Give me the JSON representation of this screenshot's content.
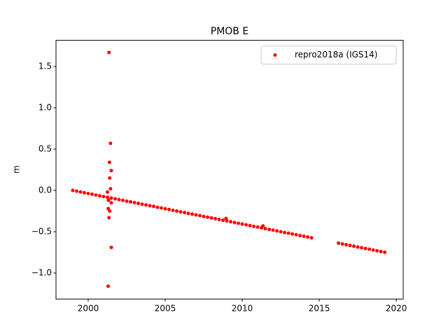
{
  "chart_data": {
    "type": "scatter",
    "title": "PMOB E",
    "y_label": "m",
    "series": [
      {
        "name": "repro2018a (IGS14)",
        "color": "#ff0000",
        "x": [
          1999,
          1999.25,
          1999.5,
          1999.75,
          2000,
          2000.25,
          2000.5,
          2000.75,
          2001,
          2001.25,
          2001.5,
          2001.75,
          2002,
          2002.25,
          2002.5,
          2002.75,
          2003,
          2003.25,
          2003.5,
          2003.75,
          2004,
          2004.25,
          2004.5,
          2004.75,
          2005,
          2005.25,
          2005.5,
          2005.75,
          2006,
          2006.25,
          2006.5,
          2006.75,
          2007,
          2007.25,
          2007.5,
          2007.75,
          2008,
          2008.25,
          2008.5,
          2008.75,
          2009,
          2009.25,
          2009.5,
          2009.75,
          2010,
          2010.25,
          2010.5,
          2010.75,
          2011,
          2011.25,
          2011.5,
          2011.75,
          2012,
          2012.25,
          2012.5,
          2012.75,
          2013,
          2013.25,
          2013.5,
          2013.75,
          2014,
          2014.25,
          2014.5,
          2016.25,
          2016.5,
          2016.75,
          2017,
          2017.25,
          2017.5,
          2017.75,
          2018,
          2018.25,
          2018.5,
          2018.75,
          2019,
          2019.25,
          2001.35,
          2001.45,
          2001.38,
          2001.5,
          2001.4,
          2001.3,
          2001.4,
          2001.35,
          2001.5,
          2001.3,
          2001.25,
          2001.45,
          2001.5,
          2001.32,
          2008.95,
          2011.35
        ],
        "values": [
          0,
          -0.009,
          -0.019,
          -0.028,
          -0.037,
          -0.046,
          -0.056,
          -0.065,
          -0.074,
          -0.083,
          -0.093,
          -0.102,
          -0.111,
          -0.12,
          -0.13,
          -0.139,
          -0.148,
          -0.157,
          -0.167,
          -0.176,
          -0.185,
          -0.194,
          -0.204,
          -0.213,
          -0.222,
          -0.231,
          -0.241,
          -0.25,
          -0.259,
          -0.268,
          -0.278,
          -0.287,
          -0.296,
          -0.305,
          -0.315,
          -0.324,
          -0.333,
          -0.342,
          -0.352,
          -0.361,
          -0.37,
          -0.379,
          -0.389,
          -0.398,
          -0.407,
          -0.416,
          -0.426,
          -0.435,
          -0.444,
          -0.453,
          -0.463,
          -0.472,
          -0.481,
          -0.49,
          -0.5,
          -0.509,
          -0.518,
          -0.527,
          -0.537,
          -0.546,
          -0.555,
          -0.564,
          -0.574,
          -0.638,
          -0.648,
          -0.657,
          -0.666,
          -0.675,
          -0.685,
          -0.694,
          -0.703,
          -0.712,
          -0.722,
          -0.731,
          -0.74,
          -0.749,
          1.67,
          0.57,
          0.34,
          0.24,
          0.15,
          -0.22,
          -0.25,
          -0.33,
          -0.69,
          -1.16,
          -0.02,
          0.02,
          -0.15,
          -0.12,
          -0.34,
          -0.43
        ]
      }
    ],
    "xlim": [
      1997.91,
      2020.45
    ],
    "ylim": [
      -1.315,
      1.817
    ],
    "xticks": [
      2000,
      2005,
      2010,
      2015,
      2020
    ],
    "yticks": [
      {
        "value": -1,
        "label": "−1.0"
      },
      {
        "value": -0.5,
        "label": "−0.5"
      },
      {
        "value": 0,
        "label": "0.0"
      },
      {
        "value": 0.5,
        "label": "0.5"
      },
      {
        "value": 1,
        "label": "1.0"
      },
      {
        "value": 1.5,
        "label": "1.5"
      }
    ],
    "legend": "upper right"
  }
}
